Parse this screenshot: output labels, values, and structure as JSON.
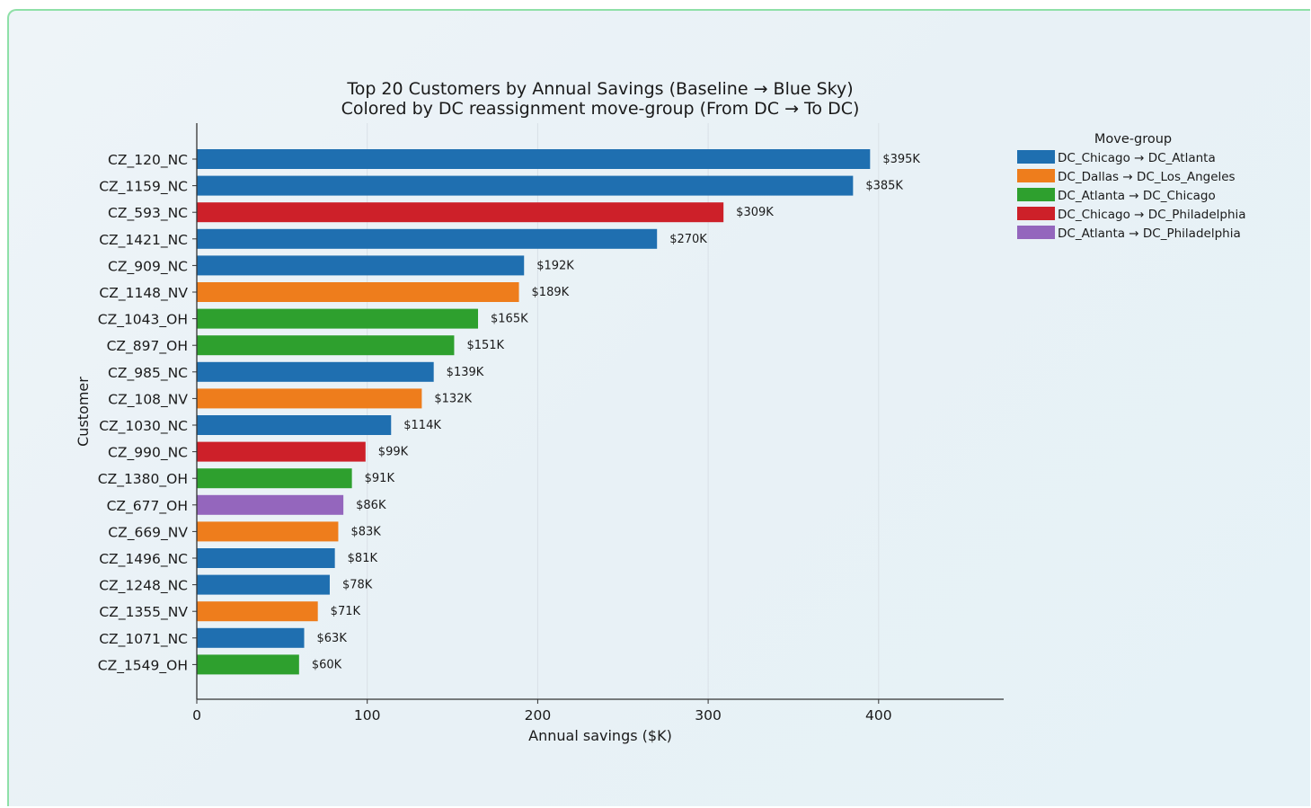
{
  "chart_data": {
    "type": "bar",
    "orientation": "horizontal",
    "title": "Top 20 Customers by Annual Savings (Baseline → Blue Sky)",
    "subtitle": "Colored by DC reassignment move-group (From DC → To DC)",
    "xlabel": "Annual savings ($K)",
    "ylabel": "Customer",
    "xlim": [
      0,
      473
    ],
    "xticks": [
      0,
      100,
      200,
      300,
      400
    ],
    "grid": "vertical",
    "legend": {
      "title": "Move-group",
      "placement": "right",
      "entries": [
        {
          "label": "DC_Chicago → DC_Atlanta",
          "color": "#1f6fb0"
        },
        {
          "label": "DC_Dallas → DC_Los_Angeles",
          "color": "#ee7d1c"
        },
        {
          "label": "DC_Atlanta → DC_Chicago",
          "color": "#2ea02e"
        },
        {
          "label": "DC_Chicago → DC_Philadelphia",
          "color": "#cd2029"
        },
        {
          "label": "DC_Atlanta → DC_Philadelphia",
          "color": "#9466bd"
        }
      ]
    },
    "bars": [
      {
        "category": "CZ_120_NC",
        "value": 395,
        "label": "$395K",
        "group": 0
      },
      {
        "category": "CZ_1159_NC",
        "value": 385,
        "label": "$385K",
        "group": 0
      },
      {
        "category": "CZ_593_NC",
        "value": 309,
        "label": "$309K",
        "group": 3
      },
      {
        "category": "CZ_1421_NC",
        "value": 270,
        "label": "$270K",
        "group": 0
      },
      {
        "category": "CZ_909_NC",
        "value": 192,
        "label": "$192K",
        "group": 0
      },
      {
        "category": "CZ_1148_NV",
        "value": 189,
        "label": "$189K",
        "group": 1
      },
      {
        "category": "CZ_1043_OH",
        "value": 165,
        "label": "$165K",
        "group": 2
      },
      {
        "category": "CZ_897_OH",
        "value": 151,
        "label": "$151K",
        "group": 2
      },
      {
        "category": "CZ_985_NC",
        "value": 139,
        "label": "$139K",
        "group": 0
      },
      {
        "category": "CZ_108_NV",
        "value": 132,
        "label": "$132K",
        "group": 1
      },
      {
        "category": "CZ_1030_NC",
        "value": 114,
        "label": "$114K",
        "group": 0
      },
      {
        "category": "CZ_990_NC",
        "value": 99,
        "label": "$99K",
        "group": 3
      },
      {
        "category": "CZ_1380_OH",
        "value": 91,
        "label": "$91K",
        "group": 2
      },
      {
        "category": "CZ_677_OH",
        "value": 86,
        "label": "$86K",
        "group": 4
      },
      {
        "category": "CZ_669_NV",
        "value": 83,
        "label": "$83K",
        "group": 1
      },
      {
        "category": "CZ_1496_NC",
        "value": 81,
        "label": "$81K",
        "group": 0
      },
      {
        "category": "CZ_1248_NC",
        "value": 78,
        "label": "$78K",
        "group": 0
      },
      {
        "category": "CZ_1355_NV",
        "value": 71,
        "label": "$71K",
        "group": 1
      },
      {
        "category": "CZ_1071_NC",
        "value": 63,
        "label": "$63K",
        "group": 0
      },
      {
        "category": "CZ_1549_OH",
        "value": 60,
        "label": "$60K",
        "group": 2
      }
    ]
  }
}
